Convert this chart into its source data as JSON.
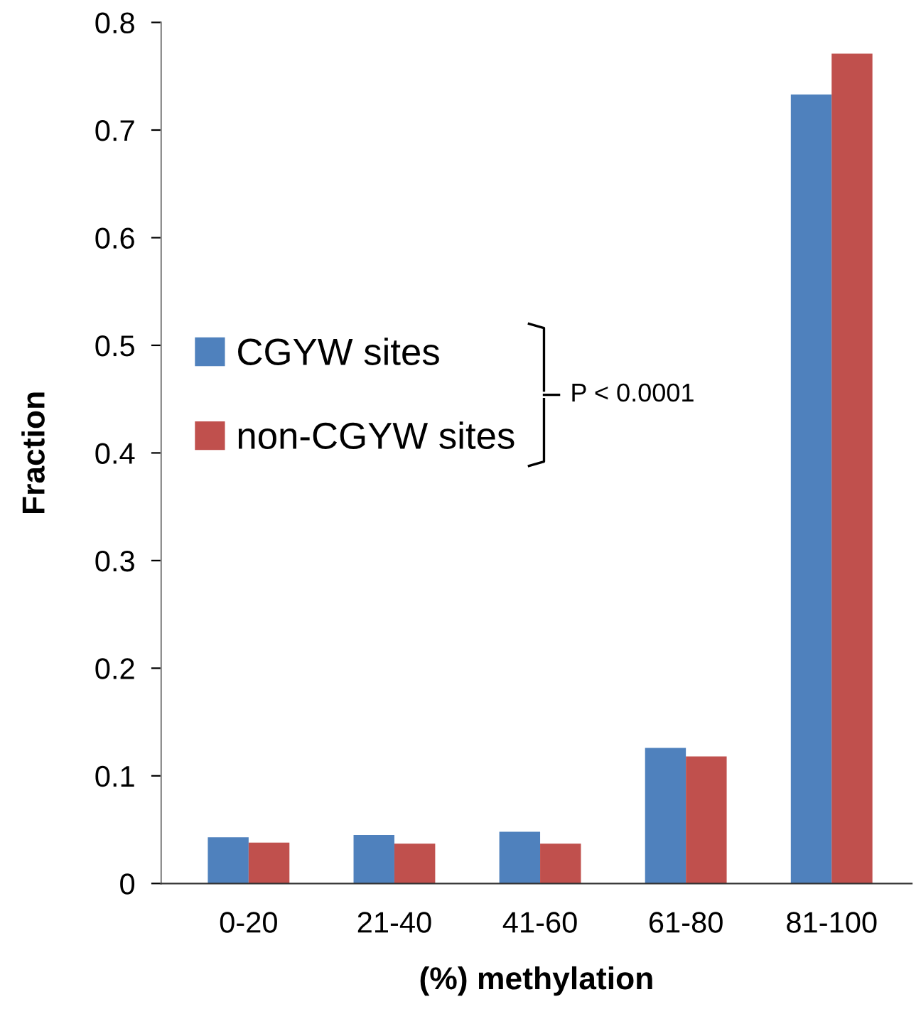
{
  "chart_data": {
    "type": "bar",
    "xlabel": "(%) methylation",
    "ylabel": "Fraction",
    "categories": [
      "0-20",
      "21-40",
      "41-60",
      "61-80",
      "81-100"
    ],
    "series": [
      {
        "name": "CGYW sites",
        "color": "#4f81bd",
        "values": [
          0.043,
          0.045,
          0.048,
          0.126,
          0.733
        ]
      },
      {
        "name": "non-CGYW sites",
        "color": "#c0504d",
        "values": [
          0.038,
          0.037,
          0.037,
          0.118,
          0.771
        ]
      }
    ],
    "ylim": [
      0,
      0.8
    ],
    "yticks": [
      0,
      0.1,
      0.2,
      0.3,
      0.4,
      0.5,
      0.6,
      0.7,
      0.8
    ],
    "grid": false,
    "legend": "left",
    "annotations": [
      "P < 0.0001"
    ]
  }
}
